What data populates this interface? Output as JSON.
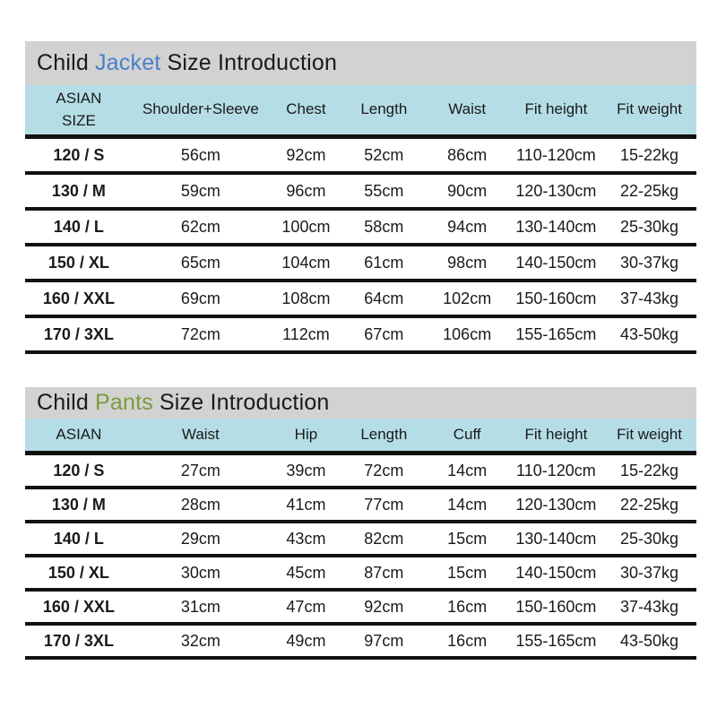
{
  "colors": {
    "page_bg": "#ffffff",
    "title_bar_bg": "#d2d2d2",
    "header_bg": "#b5dde6",
    "divider": "#111111",
    "jacket_accent": "#4a7fcc",
    "pants_accent": "#7d9b3d",
    "text": "#1a1a1a"
  },
  "jacket_table": {
    "title_prefix": "Child",
    "title_accent": "Jacket",
    "title_suffix": "Size Introduction",
    "headers": [
      "ASIAN\nSIZE",
      "Shoulder+Sleeve",
      "Chest",
      "Length",
      "Waist",
      "Fit height",
      "Fit weight"
    ],
    "rows": [
      [
        "120 / S",
        "56cm",
        "92cm",
        "52cm",
        "86cm",
        "110-120cm",
        "15-22kg"
      ],
      [
        "130 / M",
        "59cm",
        "96cm",
        "55cm",
        "90cm",
        "120-130cm",
        "22-25kg"
      ],
      [
        "140 / L",
        "62cm",
        "100cm",
        "58cm",
        "94cm",
        "130-140cm",
        "25-30kg"
      ],
      [
        "150 / XL",
        "65cm",
        "104cm",
        "61cm",
        "98cm",
        "140-150cm",
        "30-37kg"
      ],
      [
        "160 / XXL",
        "69cm",
        "108cm",
        "64cm",
        "102cm",
        "150-160cm",
        "37-43kg"
      ],
      [
        "170 / 3XL",
        "72cm",
        "112cm",
        "67cm",
        "106cm",
        "155-165cm",
        "43-50kg"
      ]
    ]
  },
  "pants_table": {
    "title_prefix": "Child",
    "title_accent": "Pants",
    "title_suffix": "Size Introduction",
    "headers": [
      "ASIAN",
      "Waist",
      "Hip",
      "Length",
      "Cuff",
      "Fit height",
      "Fit weight"
    ],
    "rows": [
      [
        "120 / S",
        "27cm",
        "39cm",
        "72cm",
        "14cm",
        "110-120cm",
        "15-22kg"
      ],
      [
        "130 / M",
        "28cm",
        "41cm",
        "77cm",
        "14cm",
        "120-130cm",
        "22-25kg"
      ],
      [
        "140 / L",
        "29cm",
        "43cm",
        "82cm",
        "15cm",
        "130-140cm",
        "25-30kg"
      ],
      [
        "150 / XL",
        "30cm",
        "45cm",
        "87cm",
        "15cm",
        "140-150cm",
        "30-37kg"
      ],
      [
        "160 / XXL",
        "31cm",
        "47cm",
        "92cm",
        "16cm",
        "150-160cm",
        "37-43kg"
      ],
      [
        "170 / 3XL",
        "32cm",
        "49cm",
        "97cm",
        "16cm",
        "155-165cm",
        "43-50kg"
      ]
    ]
  },
  "chart_data": [
    {
      "type": "table",
      "title": "Child Jacket Size Introduction",
      "columns": [
        "ASIAN SIZE",
        "Shoulder+Sleeve",
        "Chest",
        "Length",
        "Waist",
        "Fit height",
        "Fit weight"
      ],
      "rows": [
        [
          "120 / S",
          "56cm",
          "92cm",
          "52cm",
          "86cm",
          "110-120cm",
          "15-22kg"
        ],
        [
          "130 / M",
          "59cm",
          "96cm",
          "55cm",
          "90cm",
          "120-130cm",
          "22-25kg"
        ],
        [
          "140 / L",
          "62cm",
          "100cm",
          "58cm",
          "94cm",
          "130-140cm",
          "25-30kg"
        ],
        [
          "150 / XL",
          "65cm",
          "104cm",
          "61cm",
          "98cm",
          "140-150cm",
          "30-37kg"
        ],
        [
          "160 / XXL",
          "69cm",
          "108cm",
          "64cm",
          "102cm",
          "150-160cm",
          "37-43kg"
        ],
        [
          "170 / 3XL",
          "72cm",
          "112cm",
          "67cm",
          "106cm",
          "155-165cm",
          "43-50kg"
        ]
      ]
    },
    {
      "type": "table",
      "title": "Child Pants Size Introduction",
      "columns": [
        "ASIAN",
        "Waist",
        "Hip",
        "Length",
        "Cuff",
        "Fit height",
        "Fit weight"
      ],
      "rows": [
        [
          "120 / S",
          "27cm",
          "39cm",
          "72cm",
          "14cm",
          "110-120cm",
          "15-22kg"
        ],
        [
          "130 / M",
          "28cm",
          "41cm",
          "77cm",
          "14cm",
          "120-130cm",
          "22-25kg"
        ],
        [
          "140 / L",
          "29cm",
          "43cm",
          "82cm",
          "15cm",
          "130-140cm",
          "25-30kg"
        ],
        [
          "150 / XL",
          "30cm",
          "45cm",
          "87cm",
          "15cm",
          "140-150cm",
          "30-37kg"
        ],
        [
          "160 / XXL",
          "31cm",
          "47cm",
          "92cm",
          "16cm",
          "150-160cm",
          "37-43kg"
        ],
        [
          "170 / 3XL",
          "32cm",
          "49cm",
          "97cm",
          "16cm",
          "155-165cm",
          "43-50kg"
        ]
      ]
    }
  ]
}
